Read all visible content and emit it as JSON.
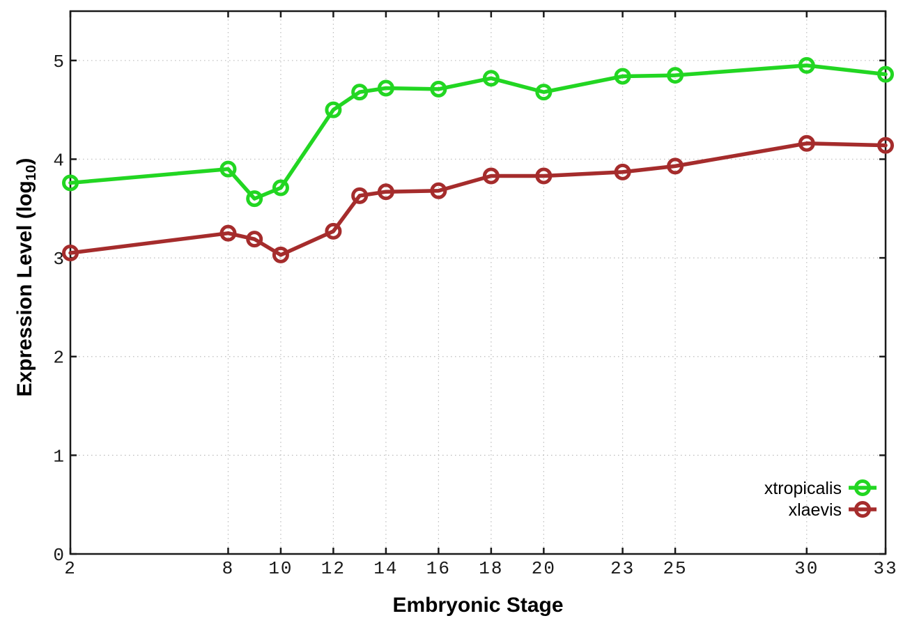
{
  "chart_data": {
    "type": "line",
    "title": "",
    "xlabel": "Embryonic Stage",
    "ylabel": "Expression Level (log10)",
    "ylabel_parts": {
      "main": "Expression Level (log",
      "sub": "10",
      "close": ")"
    },
    "x": [
      2,
      8,
      9,
      10,
      12,
      13,
      14,
      16,
      18,
      20,
      23,
      25,
      30,
      33
    ],
    "series": [
      {
        "name": "xtropicalis",
        "color": "#22d622",
        "values": [
          3.76,
          3.9,
          3.6,
          3.71,
          4.5,
          4.68,
          4.72,
          4.71,
          4.82,
          4.68,
          4.84,
          4.85,
          4.95,
          4.86
        ]
      },
      {
        "name": "xlaevis",
        "color": "#a52c2c",
        "values": [
          3.05,
          3.25,
          3.19,
          3.03,
          3.27,
          3.63,
          3.67,
          3.68,
          3.83,
          3.83,
          3.87,
          3.93,
          4.16,
          4.14
        ]
      }
    ],
    "x_ticks": [
      2,
      8,
      10,
      12,
      14,
      16,
      18,
      20,
      23,
      25,
      30,
      33
    ],
    "y_ticks": [
      0,
      1,
      2,
      3,
      4,
      5
    ],
    "xlim": [
      2,
      33
    ],
    "ylim": [
      0,
      5.5
    ],
    "grid": true,
    "legend_position": "bottom-right",
    "background": "#ffffff",
    "frame_color": "#1a1a1a",
    "grid_color": "#bcbcbc",
    "tick_label_color": "#1a1a1a"
  }
}
